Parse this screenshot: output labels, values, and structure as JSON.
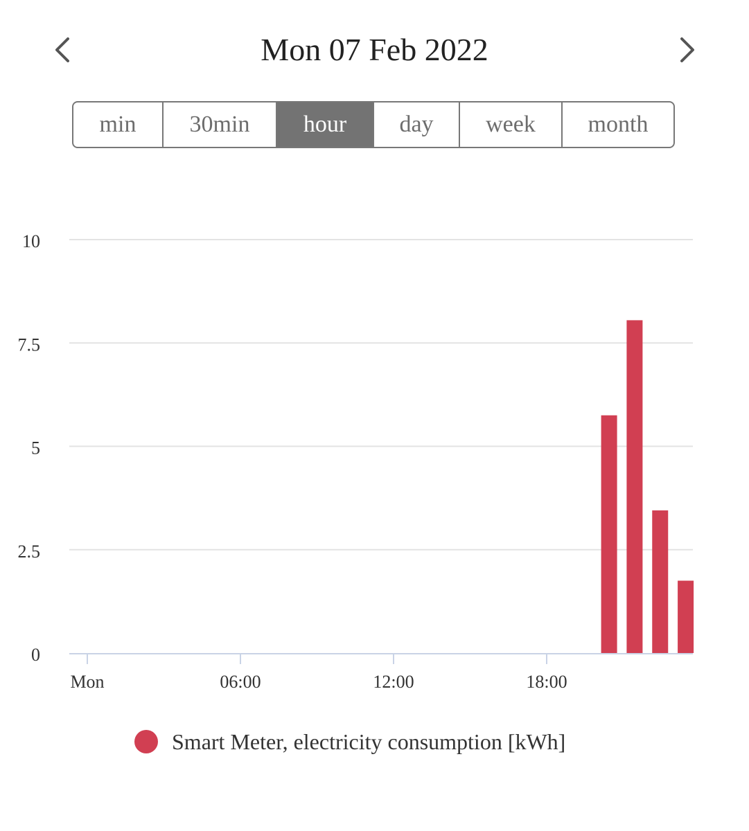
{
  "header": {
    "date": "Mon 07 Feb 2022",
    "prev_icon": "chevron-left-icon",
    "next_icon": "chevron-right-icon"
  },
  "range_selector": {
    "options": [
      "min",
      "30min",
      "hour",
      "day",
      "week",
      "month"
    ],
    "selected": "hour"
  },
  "colors": {
    "bar": "#d13f52",
    "grid": "#e3e3e3",
    "axis": "#c9d3e6",
    "selected_segment": "#737373"
  },
  "chart_data": {
    "type": "bar",
    "x_unit": "hour",
    "x": [
      20,
      21,
      22,
      23
    ],
    "x_range": [
      0,
      24
    ],
    "x_ticks": [
      {
        "value": 0,
        "label": "Mon"
      },
      {
        "value": 6,
        "label": "06:00"
      },
      {
        "value": 12,
        "label": "12:00"
      },
      {
        "value": 18,
        "label": "18:00"
      }
    ],
    "ylim": [
      0,
      10
    ],
    "y_ticks": [
      {
        "value": 0,
        "label": "0"
      },
      {
        "value": 2.5,
        "label": "2.5"
      },
      {
        "value": 5,
        "label": "5"
      },
      {
        "value": 7.5,
        "label": "7.5"
      },
      {
        "value": 10,
        "label": "10"
      }
    ],
    "grid": true,
    "legend_position": "bottom",
    "series": [
      {
        "name": "Smart Meter, electricity consumption [kWh]",
        "values": [
          5.75,
          8.05,
          3.45,
          1.75
        ]
      }
    ]
  }
}
